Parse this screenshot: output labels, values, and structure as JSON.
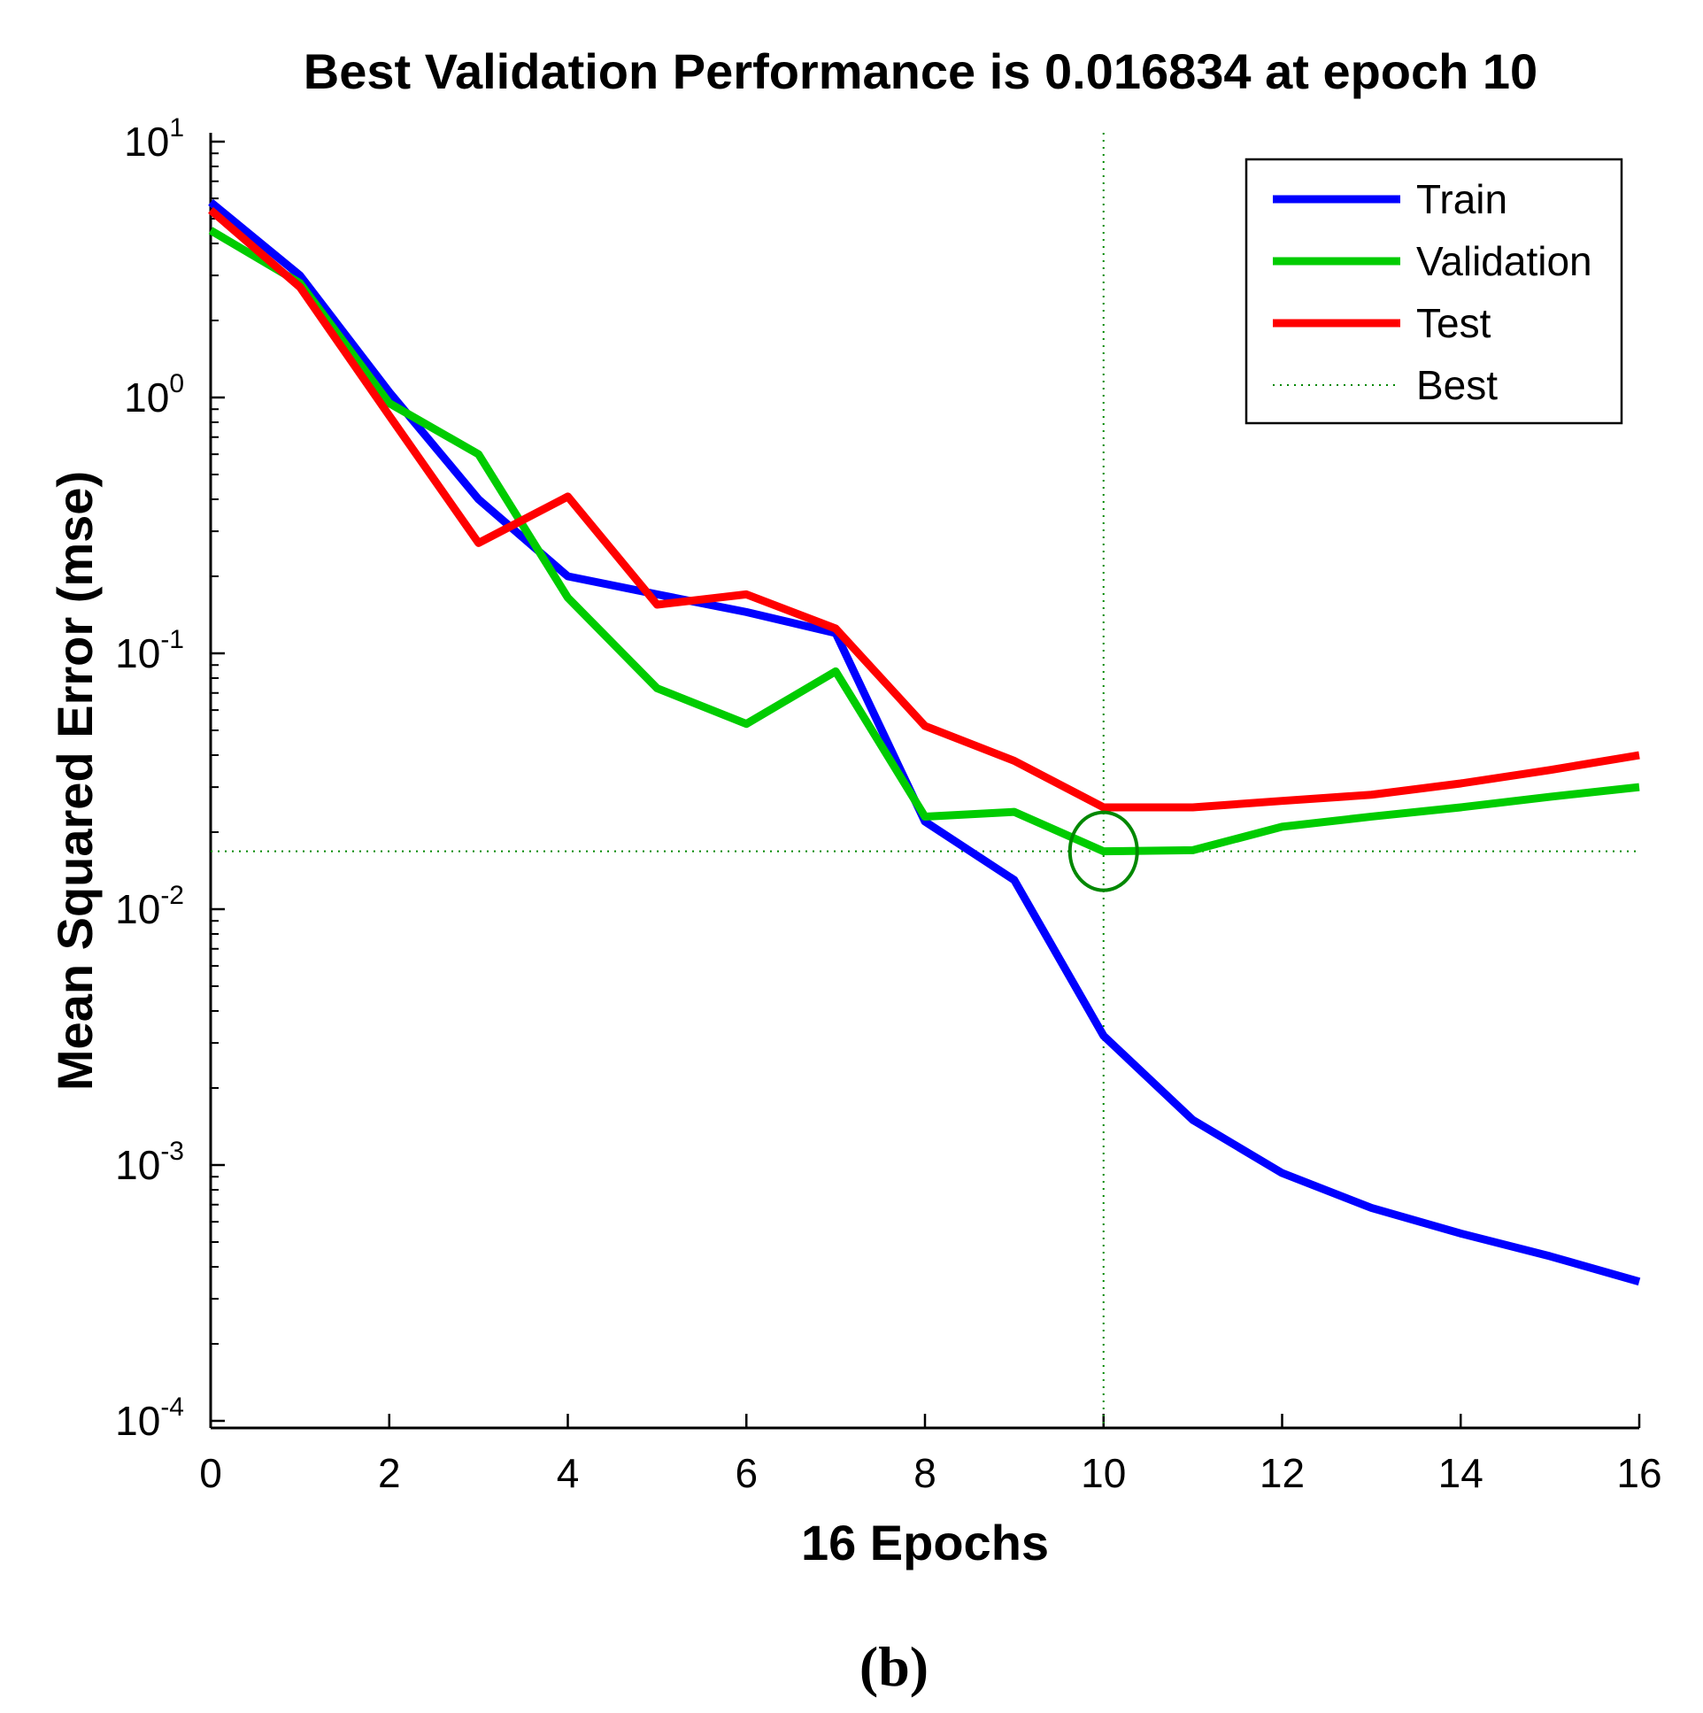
{
  "chart_data": {
    "type": "line",
    "title": "Best Validation Performance is 0.016834 at epoch 10",
    "xlabel": "16 Epochs",
    "ylabel": "Mean Squared Error  (mse)",
    "yscale": "log",
    "xlim": [
      0,
      16
    ],
    "ylim_exponent": [
      -4,
      1
    ],
    "x_ticks": [
      "0",
      "2",
      "4",
      "6",
      "8",
      "10",
      "12",
      "14",
      "16"
    ],
    "y_ticks": [
      {
        "base": "10",
        "exp": "1"
      },
      {
        "base": "10",
        "exp": "0"
      },
      {
        "base": "10",
        "exp": "-1"
      },
      {
        "base": "10",
        "exp": "-2"
      },
      {
        "base": "10",
        "exp": "-3"
      },
      {
        "base": "10",
        "exp": "-4"
      }
    ],
    "x": [
      0,
      1,
      2,
      3,
      4,
      5,
      6,
      7,
      8,
      9,
      10,
      11,
      12,
      13,
      14,
      15,
      16
    ],
    "series": [
      {
        "name": "Train",
        "color": "#0000ff",
        "values": [
          5.8,
          3.0,
          1.05,
          0.4,
          0.2,
          0.17,
          0.145,
          0.12,
          0.022,
          0.013,
          0.0032,
          0.0015,
          0.00093,
          0.00068,
          0.00054,
          0.00044,
          0.00035
        ]
      },
      {
        "name": "Validation",
        "color": "#00cc00",
        "values": [
          4.5,
          2.8,
          0.95,
          0.6,
          0.165,
          0.073,
          0.053,
          0.085,
          0.023,
          0.024,
          0.016834,
          0.017,
          0.021,
          0.023,
          0.025,
          0.0275,
          0.03
        ]
      },
      {
        "name": "Test",
        "color": "#ff0000",
        "values": [
          5.4,
          2.7,
          0.85,
          0.27,
          0.41,
          0.155,
          0.17,
          0.125,
          0.052,
          0.038,
          0.025,
          0.025,
          0.0265,
          0.028,
          0.031,
          0.035,
          0.04
        ]
      }
    ],
    "best": {
      "name": "Best",
      "epoch": 10,
      "value": 0.016834,
      "color": "#008800"
    },
    "legend": {
      "position": "top-right",
      "entries": [
        {
          "label": "Train",
          "color": "#0000ff",
          "style": "solid"
        },
        {
          "label": "Validation",
          "color": "#00cc00",
          "style": "solid"
        },
        {
          "label": "Test",
          "color": "#ff0000",
          "style": "solid"
        },
        {
          "label": "Best",
          "color": "#008800",
          "style": "dotted"
        }
      ]
    },
    "grid": false
  },
  "caption": "(b)"
}
